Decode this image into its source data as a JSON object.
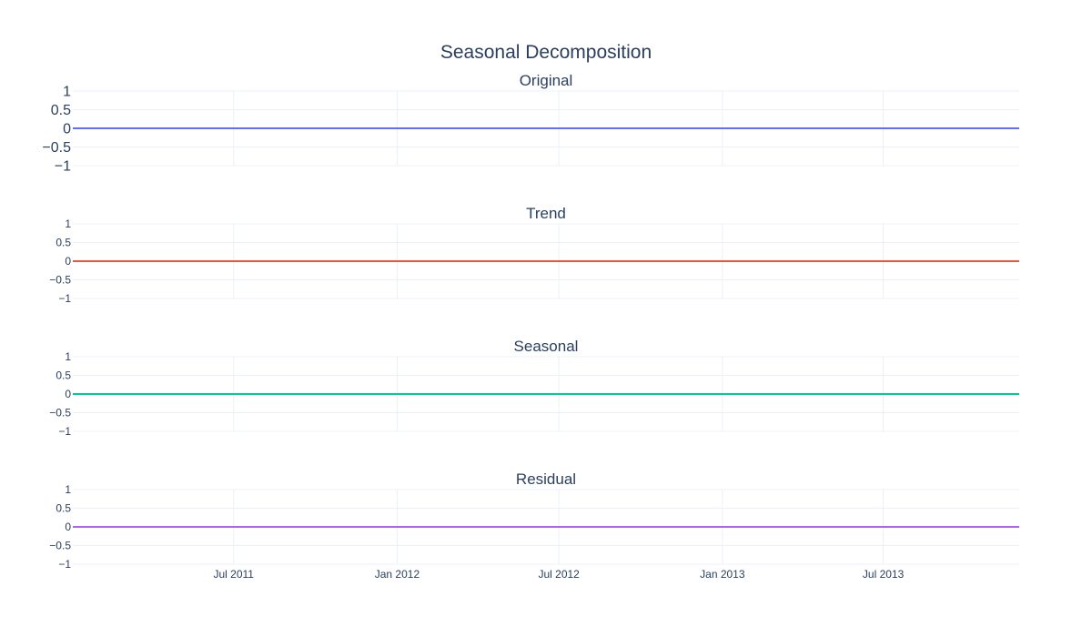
{
  "title": "Seasonal Decomposition",
  "colors": {
    "text": "#2a3f5f",
    "grid": "#ebf0f8",
    "background": "#ffffff"
  },
  "chart_data": {
    "type": "line",
    "title": "Seasonal Decomposition",
    "xlabel": "",
    "grid": true,
    "legend": "none",
    "x_ticks": [
      "Jul 2011",
      "Jan 2012",
      "Jul 2012",
      "Jan 2013",
      "Jul 2013"
    ],
    "x_tick_dates": [
      "2011-07-01",
      "2012-01-01",
      "2012-07-01",
      "2013-01-01",
      "2013-07-01"
    ],
    "x_range": [
      "2011-01-01",
      "2013-12-01"
    ],
    "y_ticks": [
      "1",
      "0.5",
      "0",
      "−0.5",
      "−1"
    ],
    "y_tick_values": [
      1,
      0.5,
      0,
      -0.5,
      -1
    ],
    "shared_x": true,
    "subplots": [
      {
        "title": "Original",
        "color": "#636efa",
        "ylim": [
          -1,
          1
        ],
        "x": [
          "2011-01-01",
          "2013-12-01"
        ],
        "values": [
          0,
          0
        ]
      },
      {
        "title": "Trend",
        "color": "#ef553b",
        "ylim": [
          -1,
          1
        ],
        "x": [
          "2011-01-01",
          "2013-12-01"
        ],
        "values": [
          0,
          0
        ]
      },
      {
        "title": "Seasonal",
        "color": "#00cc96",
        "ylim": [
          -1,
          1
        ],
        "x": [
          "2011-01-01",
          "2013-12-01"
        ],
        "values": [
          0,
          0
        ]
      },
      {
        "title": "Residual",
        "color": "#ab63fa",
        "ylim": [
          -1,
          1
        ],
        "x": [
          "2011-01-01",
          "2013-12-01"
        ],
        "values": [
          0,
          0
        ]
      }
    ]
  }
}
